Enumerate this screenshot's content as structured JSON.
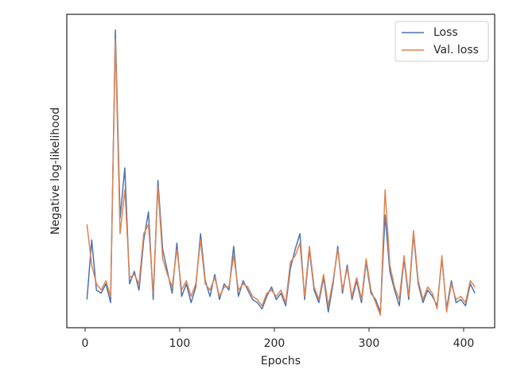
{
  "chart_data": {
    "type": "line",
    "x_label": "Epochs",
    "y_label": "Negative log-likelihood",
    "x": [
      2,
      7,
      12,
      17,
      22,
      27,
      32,
      37,
      42,
      47,
      52,
      57,
      62,
      67,
      72,
      77,
      82,
      87,
      92,
      97,
      102,
      107,
      112,
      117,
      122,
      127,
      132,
      137,
      142,
      147,
      152,
      157,
      162,
      167,
      172,
      177,
      182,
      187,
      192,
      197,
      202,
      207,
      212,
      217,
      222,
      227,
      232,
      237,
      242,
      247,
      252,
      257,
      262,
      267,
      272,
      277,
      282,
      287,
      292,
      297,
      302,
      307,
      312,
      317,
      322,
      327,
      332,
      337,
      342,
      347,
      352,
      357,
      362,
      367,
      372,
      377,
      382,
      387,
      392,
      397,
      402,
      407,
      412
    ],
    "series": [
      {
        "name": "Loss",
        "color": "#4c72b0",
        "values": [
          9,
          28,
          12,
          11,
          14,
          8,
          95,
          35,
          51,
          14,
          18,
          12,
          28,
          37,
          9,
          47,
          25,
          18,
          11,
          27,
          10,
          14,
          8,
          13,
          30,
          15,
          10,
          17,
          9,
          14,
          12,
          26,
          10,
          15,
          12,
          9,
          8,
          6,
          10,
          13,
          9,
          11,
          7,
          19,
          25,
          30,
          9,
          25,
          12,
          8,
          16,
          5,
          14,
          26,
          11,
          20,
          9,
          15,
          8,
          21,
          11,
          9,
          5,
          36,
          18,
          12,
          7,
          22,
          9,
          30,
          14,
          8,
          12,
          10,
          7,
          22,
          6,
          15,
          8,
          9,
          7,
          14,
          11
        ]
      },
      {
        "name": "Val. loss",
        "color": "#dd8452",
        "values": [
          33,
          20,
          14,
          12,
          15,
          10,
          92,
          30,
          44,
          16,
          17,
          14,
          30,
          33,
          11,
          45,
          22,
          17,
          13,
          25,
          12,
          15,
          10,
          14,
          28,
          14,
          12,
          16,
          10,
          13,
          13,
          23,
          12,
          14,
          13,
          10,
          9,
          7,
          11,
          12,
          10,
          12,
          8,
          21,
          23,
          27,
          10,
          26,
          13,
          9,
          17,
          7,
          15,
          25,
          12,
          19,
          10,
          16,
          9,
          22,
          12,
          8,
          4,
          44,
          20,
          13,
          9,
          23,
          10,
          31,
          15,
          9,
          13,
          11,
          6,
          23,
          5,
          14,
          9,
          10,
          8,
          15,
          13
        ]
      }
    ],
    "xlim": [
      -19.3,
      432.8
    ],
    "xticks": [
      0,
      100,
      200,
      300,
      400
    ],
    "ylim": [
      0,
      100
    ],
    "legend": "upper right"
  }
}
